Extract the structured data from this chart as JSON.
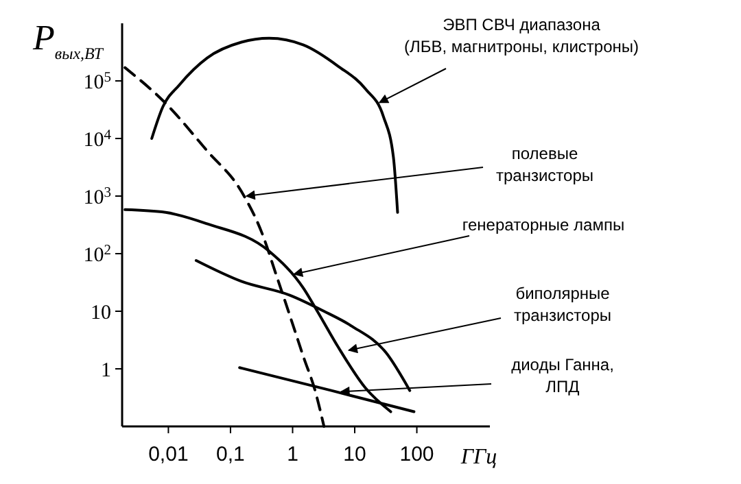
{
  "chart_data": {
    "type": "line",
    "ylabel": "P$_{вых,ВТ}$",
    "xlabel": "ГГц",
    "log": "xy",
    "xlim": [
      0.0018,
      1500
    ],
    "ylim": [
      0.1,
      1000000
    ],
    "xticks": [
      {
        "value": 0.01,
        "label": "0,01"
      },
      {
        "value": 0.1,
        "label": "0,1"
      },
      {
        "value": 1,
        "label": "1"
      },
      {
        "value": 10,
        "label": "10"
      },
      {
        "value": 100,
        "label": "100"
      }
    ],
    "yticks": [
      1,
      10,
      {
        "value": 100,
        "label": "10$^{2}$"
      },
      {
        "value": 1000,
        "label": "10$^{3}$"
      },
      {
        "value": 10000,
        "label": "10$^{4}$"
      },
      {
        "value": 100000,
        "label": "10$^{5}$"
      }
    ],
    "grid": false,
    "marker": "none",
    "series": [
      {
        "color": "#000000",
        "line_style": "solid",
        "x": [
          0.0054,
          0.0081,
          0.015,
          0.042,
          0.15,
          0.42,
          1.5,
          5.4,
          15,
          29,
          42,
          49
        ],
        "values": [
          10000,
          35000,
          85000,
          250000,
          470000,
          550000,
          420000,
          180000,
          72000,
          24000,
          4700,
          520
        ]
      },
      {
        "color": "#000000",
        "line_style": "dashed",
        "x": [
          0.002,
          0.009,
          0.042,
          0.15,
          0.32,
          0.54,
          0.9,
          1.5,
          2.3,
          3.2
        ],
        "values": [
          170000,
          41000,
          6100,
          1200,
          230,
          44,
          8.5,
          1.6,
          0.42,
          0.1
        ]
      },
      {
        "color": "#000000",
        "line_style": "solid",
        "x": [
          0.002,
          0.009,
          0.042,
          0.42,
          1.5,
          2.5,
          5.4,
          15,
          38
        ],
        "values": [
          580,
          520,
          330,
          110,
          25,
          10,
          2.4,
          0.46,
          0.18
        ]
      },
      {
        "color": "#000000",
        "line_style": "solid",
        "x": [
          0.028,
          0.15,
          0.9,
          3.2,
          9,
          32,
          77
        ],
        "values": [
          76,
          33,
          19,
          10,
          5.5,
          1.9,
          0.42
        ]
      },
      {
        "color": "#000000",
        "line_style": "solid",
        "x": [
          0.14,
          4.2,
          90
        ],
        "values": [
          1.05,
          0.42,
          0.18
        ]
      }
    ],
    "annotations": [
      {
        "text": "ЭВП СВЧ диапазона\n(ЛБВ, магнитроны, клистроны)",
        "x": 25,
        "y": 42000
      },
      {
        "text": "полевые\nтранзисторы",
        "x": 0.18,
        "y": 1000
      },
      {
        "text": "генераторные лампы",
        "x": 1.05,
        "y": 44
      },
      {
        "text": "биполярные\nтранзисторы",
        "x": 8,
        "y": 2.1
      },
      {
        "text": "диоды Ганна,\nЛПД",
        "x": 6,
        "y": 0.4
      }
    ]
  }
}
